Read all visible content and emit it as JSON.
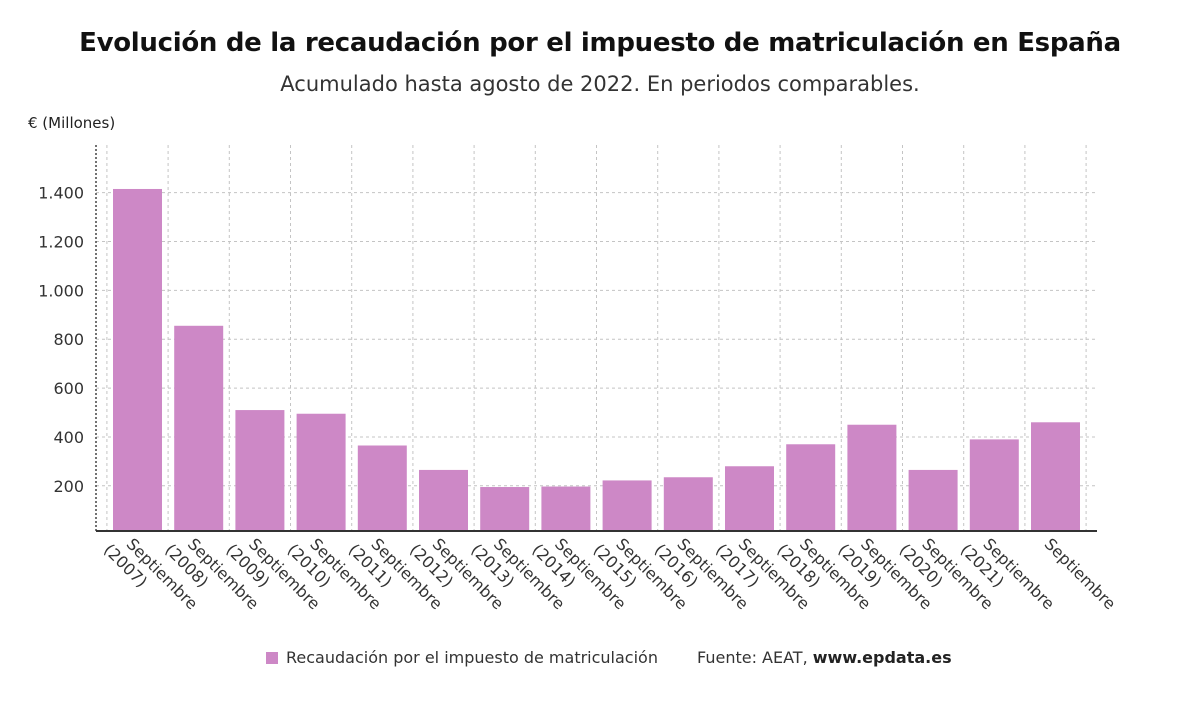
{
  "chart_data": {
    "type": "bar",
    "title": "Evolución de la recaudación por el impuesto de matriculación en España",
    "subtitle": "Acumulado hasta agosto de 2022. En periodos comparables.",
    "ylabel": "€ (Millones)",
    "categories": [
      "Septiembre (2007)",
      "Septiembre (2008)",
      "Septiembre (2009)",
      "Septiembre (2010)",
      "Septiembre (2011)",
      "Septiembre (2012)",
      "Septiembre (2013)",
      "Septiembre (2014)",
      "Septiembre (2015)",
      "Septiembre (2016)",
      "Septiembre (2017)",
      "Septiembre (2018)",
      "Septiembre (2019)",
      "Septiembre (2020)",
      "Septiembre (2021)",
      "Septiembre"
    ],
    "series": [
      {
        "name": "Recaudación por el impuesto de matriculación",
        "values": [
          1415,
          855,
          510,
          495,
          365,
          265,
          195,
          197,
          222,
          235,
          280,
          370,
          450,
          265,
          390,
          460
        ]
      }
    ],
    "yticks": [
      200,
      400,
      600,
      800,
      1000,
      1200,
      1400
    ],
    "ytick_labels": [
      "200",
      "400",
      "600",
      "800",
      "1.000",
      "1.200",
      "1.400"
    ],
    "ylim": [
      15,
      1595
    ],
    "grid": true,
    "legend_position": "bottom-left",
    "color": "#cd88c6"
  },
  "source": {
    "label": "Fuente: AEAT,",
    "site": "www.epdata.es"
  }
}
